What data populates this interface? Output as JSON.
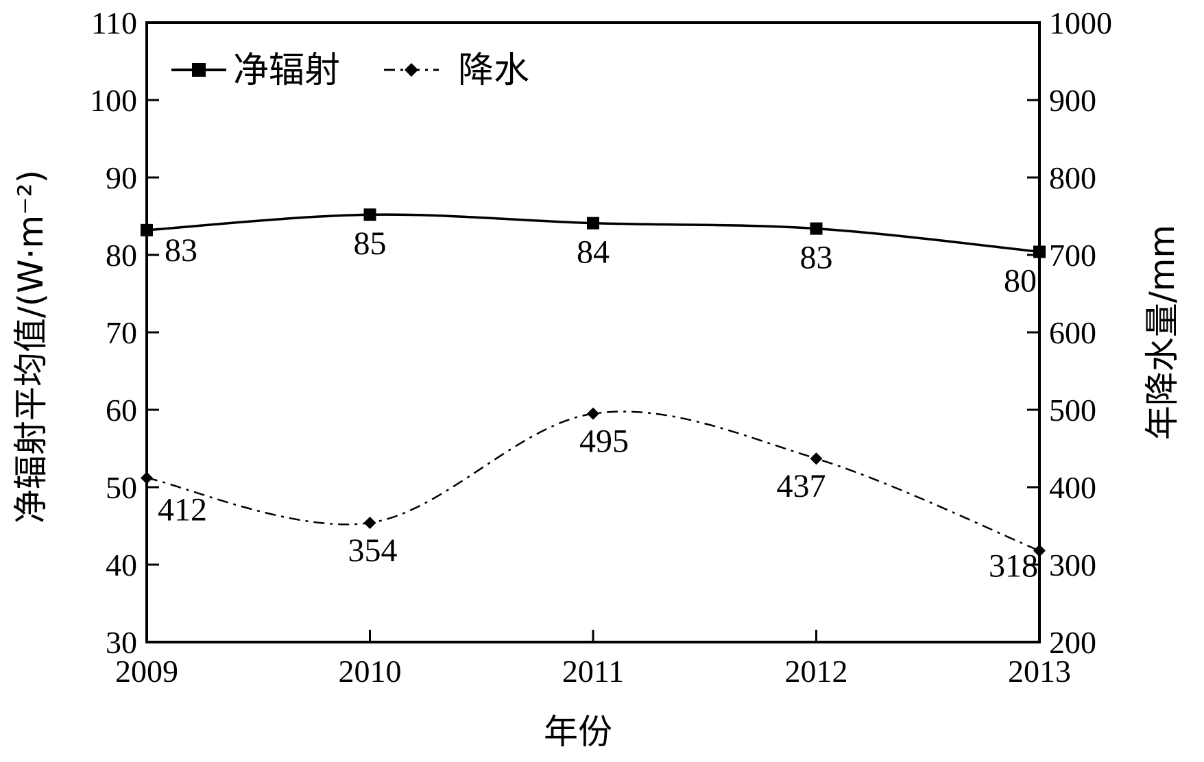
{
  "chart_data": {
    "type": "line",
    "x": [
      2009,
      2010,
      2011,
      2012,
      2013
    ],
    "xlabel": "年份",
    "ylabel_left": "净辐射平均值/(W·m⁻²)",
    "ylabel_right": "年降水量/mm",
    "xlim": [
      2009,
      2013
    ],
    "ylim_left": [
      30,
      110
    ],
    "ylim_right": [
      200,
      1000
    ],
    "yticks_left": [
      30,
      40,
      50,
      60,
      70,
      80,
      90,
      100,
      110
    ],
    "yticks_right": [
      200,
      300,
      400,
      500,
      600,
      700,
      800,
      900,
      1000
    ],
    "xticks": [
      2009,
      2010,
      2011,
      2012,
      2013
    ],
    "grid": false,
    "legend_position": "top-left",
    "series": [
      {
        "name": "净辐射",
        "axis": "left",
        "style": "solid",
        "marker": "square",
        "values": [
          83.2,
          85.2,
          84.1,
          83.4,
          80.4
        ],
        "labels": [
          "83",
          "85",
          "84",
          "83",
          "80"
        ]
      },
      {
        "name": "降水",
        "axis": "right",
        "style": "dash-dot",
        "marker": "diamond",
        "values": [
          412,
          354,
          495,
          437,
          318
        ],
        "labels": [
          "412",
          "354",
          "495",
          "437",
          "318"
        ]
      }
    ]
  }
}
